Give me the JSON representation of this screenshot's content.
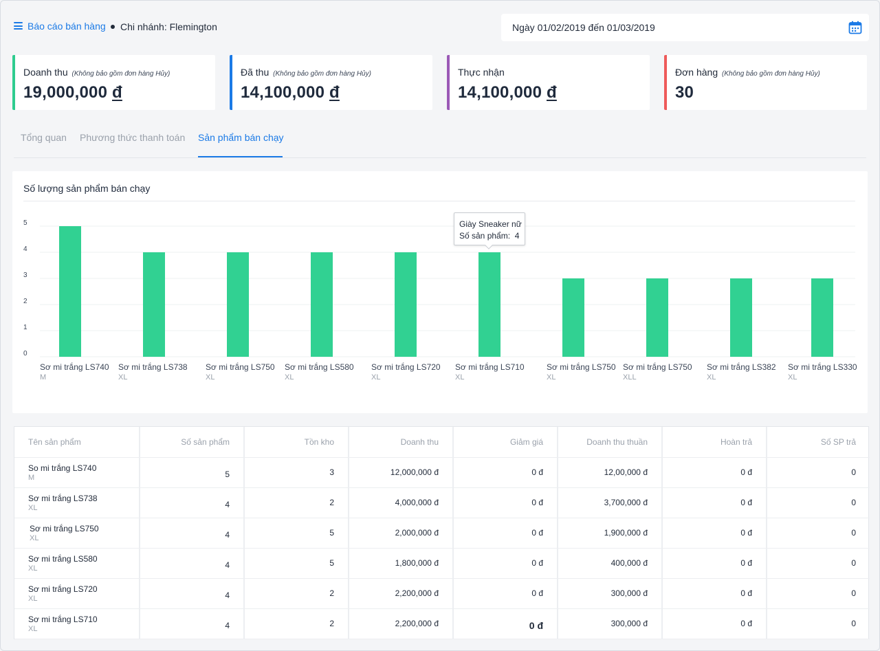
{
  "header": {
    "report_link": "Báo cáo bán hàng",
    "branch": "Chi nhánh: Flemington",
    "date_range": "Ngày 01/02/2019 đến 01/03/2019"
  },
  "kpis": [
    {
      "label": "Doanh thu",
      "note": "(Không bảo gồm đơn hàng Hủy)",
      "amount": "19,000,000",
      "currency": "đ",
      "color": "#2ecc8f"
    },
    {
      "label": "Đã thu",
      "note": "(Không bảo gồm đơn hàng Hủy)",
      "amount": "14,100,000",
      "currency": "đ",
      "color": "#1b7ae6"
    },
    {
      "label": "Thực nhận",
      "note": "",
      "amount": "14,100,000",
      "currency": "đ",
      "color": "#9b59b6"
    },
    {
      "label": "Đơn hàng",
      "note": "(Không bảo gồm đơn hàng Hủy)",
      "amount": "30",
      "currency": "",
      "color": "#ee5a5a"
    }
  ],
  "tabs": [
    "Tổng quan",
    "Phương thức thanh toán",
    "Sản phẩm bán chạy"
  ],
  "active_tab": 2,
  "chart_data": {
    "type": "bar",
    "title": "Số lượng sản phẩm bán chạy",
    "categories": [
      "Sơ mi trắng LS740",
      "Sơ mi trắng LS738",
      "Sơ mi trắng LS750",
      "Sơ mi trắng LS580",
      "Sơ mi trắng LS720",
      "Sơ mi trắng LS710",
      "Sơ mi trắng LS750",
      "Sơ mi trắng LS750",
      "Sơ mi trắng LS382",
      "Sơ mi trắng LS330"
    ],
    "sublabels": [
      "M",
      "XL",
      "XL",
      "XL",
      "XL",
      "XL",
      "XL",
      "XLL",
      "XL",
      "XL"
    ],
    "values": [
      5,
      4,
      4,
      4,
      4,
      4,
      3,
      3,
      3,
      3
    ],
    "yticks": [
      0,
      1,
      2,
      3,
      4,
      5
    ],
    "ylim": [
      0,
      5
    ],
    "bar_color": "#31d192",
    "tooltip": {
      "title": "Giày Sneaker nữ",
      "label": "Số sản phẩm:",
      "value": "4"
    }
  },
  "table": {
    "headers": [
      "Tên sản phẩm",
      "Số sản phẩm",
      "Tồn kho",
      "Doanh thu",
      "Giảm giá",
      "Doanh thu thuần",
      "Hoàn trả",
      "Số SP trả"
    ],
    "rows": [
      {
        "name": "So mi trắng LS740",
        "variant": "M",
        "qty": "5",
        "stock": "3",
        "revenue": "12,000,000 đ",
        "discount": "0 đ",
        "net": "12,00,000 đ",
        "refund": "0 đ",
        "returned": "0"
      },
      {
        "name": "Sơ mi trắng LS738",
        "variant": "XL",
        "qty": "4",
        "stock": "2",
        "revenue": "4,000,000 đ",
        "discount": "0 đ",
        "net": "3,700,000 đ",
        "refund": "0 đ",
        "returned": "0"
      },
      {
        "name": "Sơ mi trắng LS750",
        "variant": "XL",
        "qty": "4",
        "stock": "5",
        "revenue": "2,000,000 đ",
        "discount": "0 đ",
        "net": "1,900,000 đ",
        "refund": "0 đ",
        "returned": "0"
      },
      {
        "name": "Sơ mi trắng LS580",
        "variant": "XL",
        "qty": "4",
        "stock": "5",
        "revenue": "1,800,000 đ",
        "discount": "0 đ",
        "net": "400,000 đ",
        "refund": "0 đ",
        "returned": "0"
      },
      {
        "name": "Sơ mi trắng LS720",
        "variant": "XL",
        "qty": "4",
        "stock": "2",
        "revenue": "2,200,000 đ",
        "discount": "0 đ",
        "net": "300,000 đ",
        "refund": "0 đ",
        "returned": "0"
      },
      {
        "name": "Sơ mi trắng LS710",
        "variant": "XL",
        "qty": "4",
        "stock": "2",
        "revenue": "2,200,000 đ",
        "discount": "0 đ",
        "net": "300,000 đ",
        "refund": "0 đ",
        "returned": "0"
      }
    ]
  }
}
